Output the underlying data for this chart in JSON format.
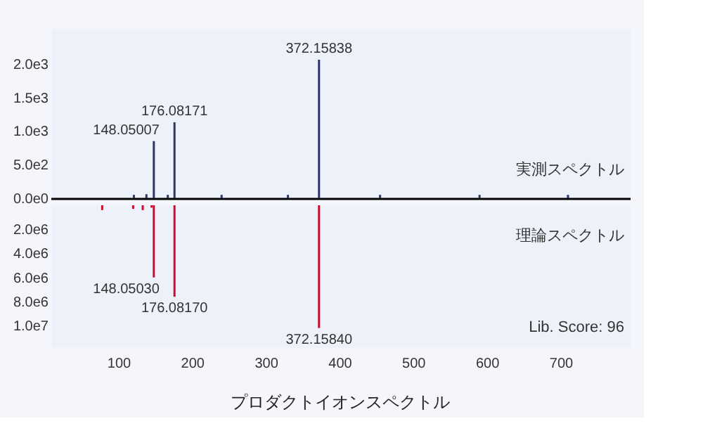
{
  "chart_data": [
    {
      "type": "bar",
      "x": [
        121,
        138,
        148.05007,
        167,
        176.08171,
        240,
        330,
        372.15838,
        455,
        590,
        710
      ],
      "series": [
        {
          "color": "#2b3566",
          "values": [
            50,
            60,
            850,
            50,
            1130,
            50,
            50,
            2060,
            50,
            50,
            50
          ]
        }
      ],
      "xlim": [
        8,
        794
      ],
      "ylim": [
        0,
        2530
      ],
      "yticks": [
        {
          "value": 0,
          "label": "0.0e0"
        },
        {
          "value": 500,
          "label": "5.0e2"
        },
        {
          "value": 1000,
          "label": "1.0e3"
        },
        {
          "value": 1500,
          "label": "1.5e3"
        },
        {
          "value": 2000,
          "label": "2.0e3"
        }
      ],
      "tick_labels": "y",
      "grid": false,
      "annotations": [
        {
          "text": "148.05007",
          "x": 148.05007,
          "y": 850
        },
        {
          "text": "176.08171",
          "x": 176.08171,
          "y": 1130
        },
        {
          "text": "372.15838",
          "x": 372.15838,
          "y": 2060
        },
        "実測スペクトル"
      ]
    },
    {
      "type": "bar",
      "x": [
        78,
        120,
        133,
        145,
        148.0503,
        176.0817,
        372.1584
      ],
      "series": [
        {
          "color": "#c8102e",
          "values": [
            400000,
            300000,
            400000,
            200000,
            6000000,
            7600000,
            10200000
          ]
        }
      ],
      "xlim": [
        8,
        794
      ],
      "ylim": [
        11800000,
        0
      ],
      "xticks": [
        100,
        200,
        300,
        400,
        500,
        600,
        700
      ],
      "yticks": [
        {
          "value": 2000000,
          "label": "2.0e6"
        },
        {
          "value": 4000000,
          "label": "4.0e6"
        },
        {
          "value": 6000000,
          "label": "6.0e6"
        },
        {
          "value": 8000000,
          "label": "8.0e6"
        },
        {
          "value": 10000000,
          "label": "1.0e7"
        }
      ],
      "grid": false,
      "title": "プロダクトイオンスペクトル",
      "annotations": [
        {
          "text": "148.05030",
          "x": 148.0503,
          "y": 6000000
        },
        {
          "text": "176.08170",
          "x": 176.0817,
          "y": 7600000
        },
        {
          "text": "372.15840",
          "x": 372.1584,
          "y": 10200000
        },
        "理論スペクトル",
        "Lib. Score: 96"
      ]
    }
  ]
}
